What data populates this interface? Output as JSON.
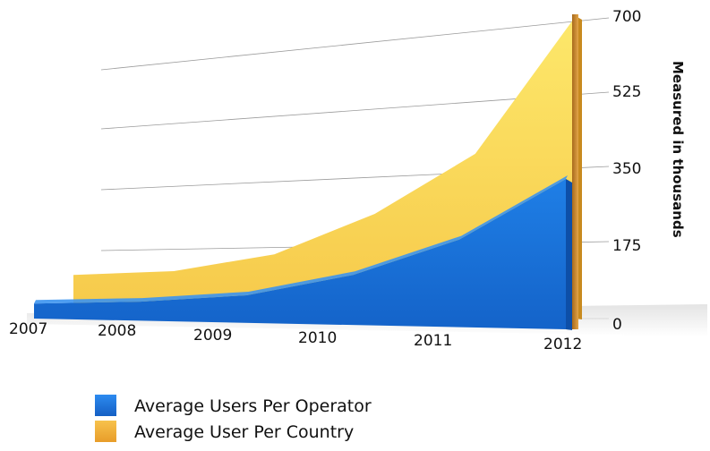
{
  "chart_data": {
    "type": "area",
    "x": [
      "2007",
      "2008",
      "2009",
      "2010",
      "2011",
      "2012"
    ],
    "series": [
      {
        "name": "Average Users Per Operator",
        "values": [
          30,
          38,
          55,
          100,
          175,
          300
        ],
        "color": "#1a73d9"
      },
      {
        "name": "Average User Per Country",
        "values": [
          70,
          85,
          130,
          230,
          375,
          700
        ],
        "color": "#f3b73a"
      }
    ],
    "y_ticks": [
      "0",
      "175",
      "350",
      "525",
      "700"
    ],
    "ylim": [
      0,
      700
    ],
    "ylabel": "Measured in thousands",
    "xlabel": "",
    "title": "",
    "legend_position": "bottom-left",
    "grid": true
  }
}
